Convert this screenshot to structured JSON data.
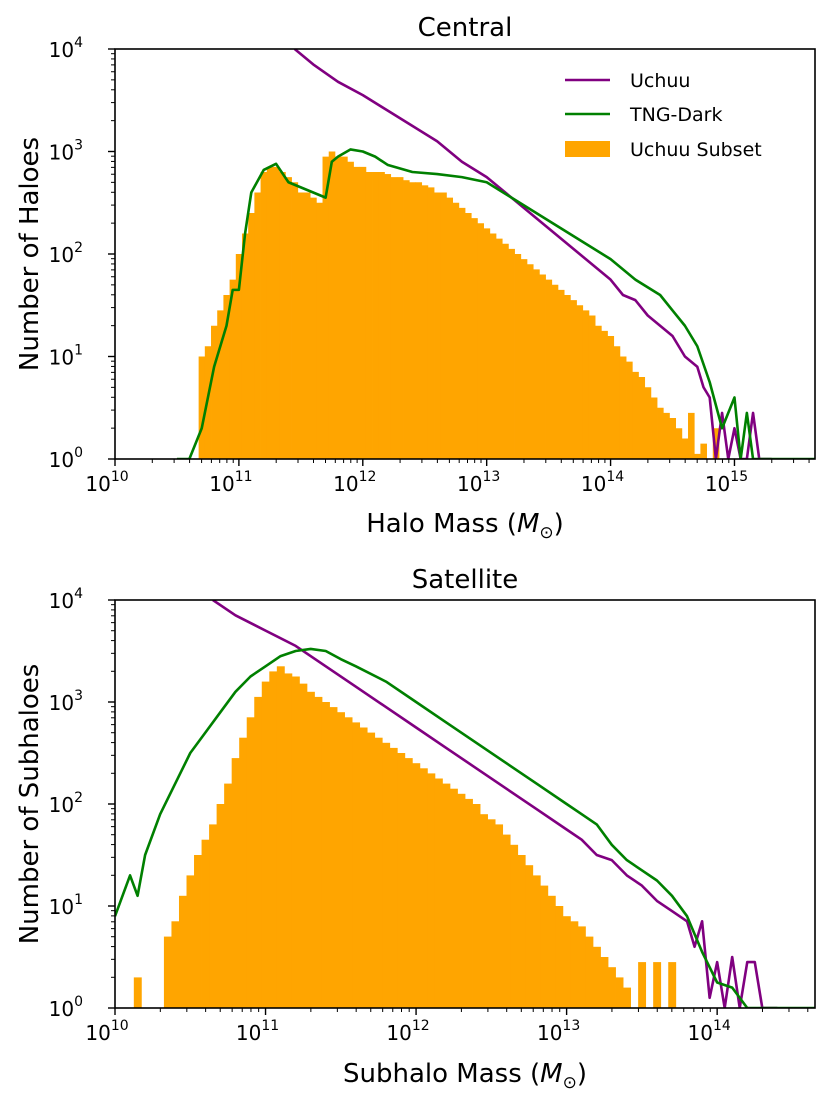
{
  "chart_data": [
    {
      "type": "histogram+line",
      "title": "Central",
      "xlabel_base": "Halo Mass (",
      "xlabel_symbol": "M",
      "xlabel_sub": "⊙",
      "xlabel_close": ")",
      "ylabel": "Number of Haloes",
      "xscale": "log",
      "yscale": "log",
      "xlim_log10": [
        10,
        15.65
      ],
      "ylim_log10": [
        0,
        4
      ],
      "x_ticks": [
        {
          "base": "10",
          "exp": "10"
        },
        {
          "base": "10",
          "exp": "11"
        },
        {
          "base": "10",
          "exp": "12"
        },
        {
          "base": "10",
          "exp": "13"
        },
        {
          "base": "10",
          "exp": "14"
        },
        {
          "base": "10",
          "exp": "15"
        }
      ],
      "y_ticks": [
        {
          "base": "10",
          "exp": "0"
        },
        {
          "base": "10",
          "exp": "1"
        },
        {
          "base": "10",
          "exp": "2"
        },
        {
          "base": "10",
          "exp": "3"
        },
        {
          "base": "10",
          "exp": "4"
        }
      ],
      "legend": {
        "position": "top-right",
        "entries": [
          "Uchuu",
          "TNG-Dark",
          "Uchuu Subset"
        ]
      },
      "bars": {
        "name": "Uchuu Subset",
        "color": "#ffa500",
        "log10_mass": [
          10.7,
          10.75,
          10.8,
          10.85,
          10.9,
          10.95,
          11.0,
          11.05,
          11.1,
          11.15,
          11.2,
          11.25,
          11.3,
          11.35,
          11.4,
          11.45,
          11.5,
          11.55,
          11.6,
          11.65,
          11.7,
          11.75,
          11.8,
          11.85,
          11.9,
          11.95,
          12.0,
          12.05,
          12.1,
          12.15,
          12.2,
          12.25,
          12.3,
          12.35,
          12.4,
          12.45,
          12.5,
          12.55,
          12.6,
          12.65,
          12.7,
          12.75,
          12.8,
          12.85,
          12.9,
          12.95,
          13.0,
          13.05,
          13.1,
          13.15,
          13.2,
          13.25,
          13.3,
          13.35,
          13.4,
          13.45,
          13.5,
          13.55,
          13.6,
          13.65,
          13.7,
          13.75,
          13.8,
          13.85,
          13.9,
          13.95,
          14.0,
          14.05,
          14.1,
          14.15,
          14.2,
          14.25,
          14.3,
          14.35,
          14.4,
          14.45,
          14.5,
          14.55,
          14.6,
          14.65,
          14.7,
          14.75,
          14.8,
          14.85,
          14.9,
          14.95,
          15.0,
          15.05,
          15.1,
          15.15,
          15.2,
          15.25,
          15.3,
          15.35,
          15.4,
          15.45
        ],
        "log10_count": [
          1.0,
          1.1,
          1.3,
          1.45,
          1.6,
          1.75,
          2.0,
          2.2,
          2.4,
          2.6,
          2.8,
          2.85,
          2.85,
          2.8,
          2.75,
          2.7,
          2.6,
          2.6,
          2.55,
          2.5,
          2.95,
          3.0,
          2.95,
          2.95,
          2.9,
          2.85,
          2.85,
          2.8,
          2.8,
          2.8,
          2.78,
          2.75,
          2.75,
          2.72,
          2.7,
          2.7,
          2.67,
          2.65,
          2.6,
          2.6,
          2.55,
          2.5,
          2.45,
          2.4,
          2.35,
          2.3,
          2.25,
          2.2,
          2.15,
          2.1,
          2.05,
          2.0,
          1.95,
          1.9,
          1.85,
          1.8,
          1.75,
          1.7,
          1.65,
          1.6,
          1.55,
          1.5,
          1.45,
          1.4,
          1.3,
          1.25,
          1.2,
          1.1,
          1.0,
          0.95,
          0.85,
          0.8,
          0.7,
          0.6,
          0.5,
          0.45,
          0.4,
          0.3,
          0.2,
          0.45,
          0.05,
          0.15,
          0.0,
          0.3,
          0.0,
          0.0,
          0.0,
          0.0,
          0.0,
          0.0,
          0.0,
          0.0,
          0.0,
          0.0,
          0.0,
          0.0
        ]
      },
      "series": [
        {
          "name": "Uchuu",
          "color": "#800080",
          "log10_mass": [
            11.45,
            11.6,
            11.8,
            12.0,
            12.2,
            12.4,
            12.6,
            12.8,
            13.0,
            13.2,
            13.4,
            13.6,
            13.8,
            14.0,
            14.1,
            14.2,
            14.3,
            14.4,
            14.5,
            14.6,
            14.7,
            14.75,
            14.8,
            14.85,
            14.9,
            14.95,
            15.0,
            15.05,
            15.1,
            15.15,
            15.2,
            15.25,
            15.3
          ],
          "log10_count": [
            4.0,
            3.85,
            3.68,
            3.55,
            3.4,
            3.25,
            3.1,
            2.9,
            2.75,
            2.55,
            2.35,
            2.15,
            1.95,
            1.75,
            1.6,
            1.55,
            1.4,
            1.3,
            1.2,
            1.0,
            0.9,
            0.7,
            0.6,
            0.0,
            0.45,
            0.0,
            0.3,
            0.0,
            0.0,
            0.45,
            0.0,
            0.0,
            0.0
          ]
        },
        {
          "name": "TNG-Dark",
          "color": "#008000",
          "log10_mass": [
            10.5,
            10.6,
            10.7,
            10.8,
            10.9,
            10.95,
            11.0,
            11.05,
            11.1,
            11.2,
            11.3,
            11.4,
            11.5,
            11.6,
            11.7,
            11.75,
            11.8,
            11.9,
            12.0,
            12.1,
            12.2,
            12.4,
            12.6,
            12.8,
            13.0,
            13.2,
            13.4,
            13.6,
            13.8,
            14.0,
            14.2,
            14.4,
            14.5,
            14.6,
            14.7,
            14.8,
            14.9,
            15.0,
            15.05,
            15.1,
            15.15,
            15.2,
            15.3,
            15.4,
            15.5,
            15.65
          ],
          "log10_count": [
            0.0,
            0.0,
            0.3,
            0.9,
            1.3,
            1.65,
            1.65,
            2.2,
            2.6,
            2.82,
            2.88,
            2.7,
            2.65,
            2.6,
            2.55,
            2.9,
            2.95,
            3.02,
            3.0,
            2.95,
            2.87,
            2.8,
            2.78,
            2.75,
            2.7,
            2.55,
            2.4,
            2.25,
            2.1,
            1.95,
            1.75,
            1.6,
            1.45,
            1.3,
            1.1,
            0.75,
            0.3,
            0.6,
            0.0,
            0.45,
            0.0,
            0.0,
            0.0,
            0.0,
            0.0,
            0.0
          ]
        }
      ]
    },
    {
      "type": "histogram+line",
      "title": "Satellite",
      "xlabel_base": "Subhalo Mass (",
      "xlabel_symbol": "M",
      "xlabel_sub": "⊙",
      "xlabel_close": ")",
      "ylabel": "Number of Subhaloes",
      "xscale": "log",
      "yscale": "log",
      "xlim_log10": [
        10,
        14.65
      ],
      "ylim_log10": [
        0,
        4
      ],
      "x_ticks": [
        {
          "base": "10",
          "exp": "10"
        },
        {
          "base": "10",
          "exp": "11"
        },
        {
          "base": "10",
          "exp": "12"
        },
        {
          "base": "10",
          "exp": "13"
        },
        {
          "base": "10",
          "exp": "14"
        }
      ],
      "y_ticks": [
        {
          "base": "10",
          "exp": "0"
        },
        {
          "base": "10",
          "exp": "1"
        },
        {
          "base": "10",
          "exp": "2"
        },
        {
          "base": "10",
          "exp": "3"
        },
        {
          "base": "10",
          "exp": "4"
        }
      ],
      "bars": {
        "name": "Uchuu Subset",
        "color": "#ffa500",
        "log10_mass": [
          10.15,
          10.35,
          10.4,
          10.45,
          10.5,
          10.55,
          10.6,
          10.65,
          10.7,
          10.75,
          10.8,
          10.85,
          10.9,
          10.95,
          11.0,
          11.05,
          11.1,
          11.15,
          11.2,
          11.25,
          11.3,
          11.35,
          11.4,
          11.45,
          11.5,
          11.55,
          11.6,
          11.65,
          11.7,
          11.75,
          11.8,
          11.85,
          11.9,
          11.95,
          12.0,
          12.05,
          12.1,
          12.15,
          12.2,
          12.25,
          12.3,
          12.35,
          12.4,
          12.45,
          12.5,
          12.55,
          12.6,
          12.65,
          12.7,
          12.75,
          12.8,
          12.85,
          12.9,
          12.95,
          13.0,
          13.05,
          13.1,
          13.15,
          13.2,
          13.25,
          13.3,
          13.35,
          13.4,
          13.45,
          13.5,
          13.55,
          13.6,
          13.65,
          13.7,
          13.75,
          13.8,
          13.85,
          13.9,
          13.95,
          14.0,
          14.05,
          14.1,
          14.15,
          14.2,
          14.25
        ],
        "log10_count": [
          0.3,
          0.7,
          0.85,
          1.1,
          1.3,
          1.5,
          1.65,
          1.8,
          2.0,
          2.2,
          2.45,
          2.65,
          2.85,
          3.05,
          3.2,
          3.3,
          3.35,
          3.28,
          3.25,
          3.18,
          3.1,
          3.05,
          3.0,
          2.95,
          2.9,
          2.85,
          2.8,
          2.75,
          2.7,
          2.65,
          2.6,
          2.55,
          2.5,
          2.45,
          2.4,
          2.35,
          2.3,
          2.25,
          2.2,
          2.15,
          2.1,
          2.05,
          2.0,
          1.9,
          1.85,
          1.8,
          1.7,
          1.6,
          1.5,
          1.4,
          1.3,
          1.2,
          1.1,
          1.0,
          0.9,
          0.85,
          0.8,
          0.7,
          0.6,
          0.5,
          0.4,
          0.3,
          0.2,
          0.0,
          0.45,
          0.0,
          0.45,
          0.0,
          0.45,
          0.0,
          0.0,
          0.0,
          0.0,
          0.0,
          0.0,
          0.0,
          0.0,
          0.0,
          0.0,
          0.0
        ]
      },
      "series": [
        {
          "name": "Uchuu",
          "color": "#800080",
          "log10_mass": [
            10.65,
            10.8,
            11.0,
            11.2,
            11.4,
            11.6,
            11.8,
            12.0,
            12.2,
            12.4,
            12.6,
            12.8,
            13.0,
            13.1,
            13.2,
            13.3,
            13.4,
            13.5,
            13.6,
            13.7,
            13.8,
            13.85,
            13.9,
            13.95,
            14.0,
            14.05,
            14.1,
            14.15,
            14.2,
            14.25,
            14.3,
            14.4
          ],
          "log10_count": [
            4.0,
            3.85,
            3.7,
            3.55,
            3.35,
            3.15,
            2.95,
            2.75,
            2.55,
            2.35,
            2.15,
            1.95,
            1.75,
            1.65,
            1.5,
            1.45,
            1.3,
            1.2,
            1.05,
            0.95,
            0.85,
            0.6,
            0.85,
            0.1,
            0.45,
            0.0,
            0.5,
            0.0,
            0.45,
            0.45,
            0.0,
            0.0
          ]
        },
        {
          "name": "TNG-Dark",
          "color": "#008000",
          "log10_mass": [
            10.0,
            10.1,
            10.15,
            10.2,
            10.3,
            10.4,
            10.5,
            10.6,
            10.7,
            10.8,
            10.9,
            11.0,
            11.1,
            11.2,
            11.3,
            11.4,
            11.5,
            11.6,
            11.8,
            12.0,
            12.2,
            12.4,
            12.6,
            12.8,
            13.0,
            13.1,
            13.2,
            13.3,
            13.4,
            13.5,
            13.6,
            13.7,
            13.8,
            13.9,
            14.0,
            14.1,
            14.2,
            14.65
          ],
          "log10_count": [
            0.9,
            1.3,
            1.1,
            1.5,
            1.9,
            2.2,
            2.5,
            2.7,
            2.9,
            3.1,
            3.25,
            3.35,
            3.45,
            3.5,
            3.52,
            3.5,
            3.42,
            3.35,
            3.2,
            3.0,
            2.8,
            2.6,
            2.4,
            2.2,
            2.0,
            1.9,
            1.8,
            1.6,
            1.45,
            1.35,
            1.25,
            1.1,
            0.9,
            0.55,
            0.25,
            0.2,
            0.0,
            0.0
          ]
        }
      ]
    }
  ]
}
